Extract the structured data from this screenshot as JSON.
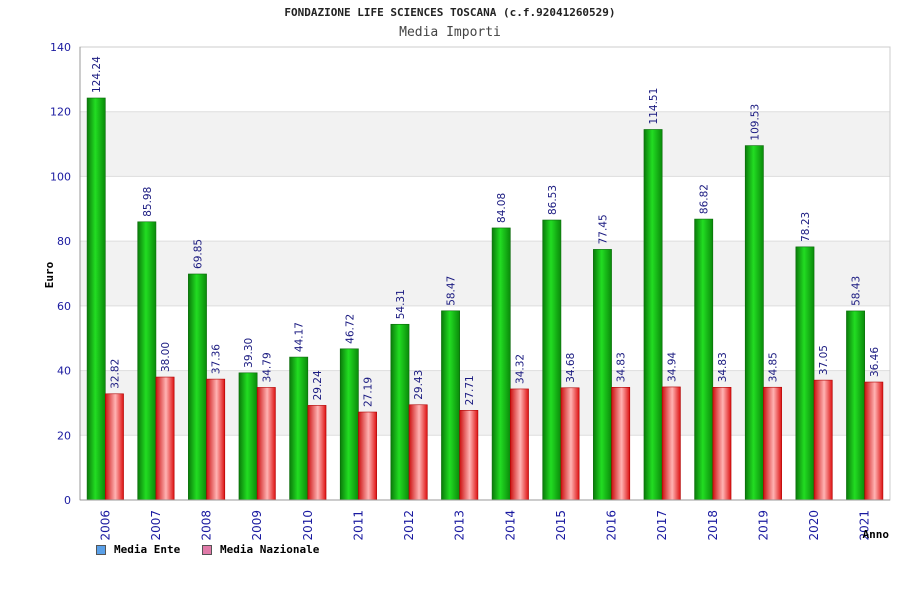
{
  "chart_data": {
    "type": "bar",
    "title": "FONDAZIONE LIFE SCIENCES TOSCANA (c.f.92041260529)",
    "subtitle": "Media Importi",
    "ylabel": "Euro",
    "xlabel": "Anno",
    "ylim": [
      0,
      140
    ],
    "yticks": [
      0,
      20,
      40,
      60,
      80,
      100,
      120,
      140
    ],
    "categories": [
      "2006",
      "2007",
      "2008",
      "2009",
      "2010",
      "2011",
      "2012",
      "2013",
      "2014",
      "2015",
      "2016",
      "2017",
      "2018",
      "2019",
      "2020",
      "2021"
    ],
    "series": [
      {
        "name": "Media Ente",
        "color": "#00aa00",
        "legend_color": "#5aa0e8",
        "values": [
          124.24,
          85.98,
          69.85,
          39.3,
          44.17,
          46.72,
          54.31,
          58.47,
          84.08,
          86.53,
          77.45,
          114.51,
          86.82,
          109.53,
          78.23,
          58.43
        ],
        "labels": [
          "124.24",
          "85.98",
          "69.85",
          "39.30",
          "44.17",
          "46.72",
          "54.31",
          "58.47",
          "84.08",
          "86.53",
          "77.45",
          "114.51",
          "86.82",
          "109.53",
          "78.23",
          "58.43"
        ]
      },
      {
        "name": "Media Nazionale",
        "color": "#ee1111",
        "legend_color": "#e07aa8",
        "values": [
          32.82,
          38.0,
          37.36,
          34.79,
          29.24,
          27.19,
          29.43,
          27.71,
          34.32,
          34.68,
          34.83,
          34.94,
          34.83,
          34.85,
          37.05,
          36.46
        ],
        "labels": [
          "32.82",
          "38.00",
          "37.36",
          "34.79",
          "29.24",
          "27.19",
          "29.43",
          "27.71",
          "34.32",
          "34.68",
          "34.83",
          "34.94",
          "34.83",
          "34.85",
          "37.05",
          "36.46"
        ]
      }
    ],
    "grid": true,
    "legend_position": "bottom-left"
  }
}
